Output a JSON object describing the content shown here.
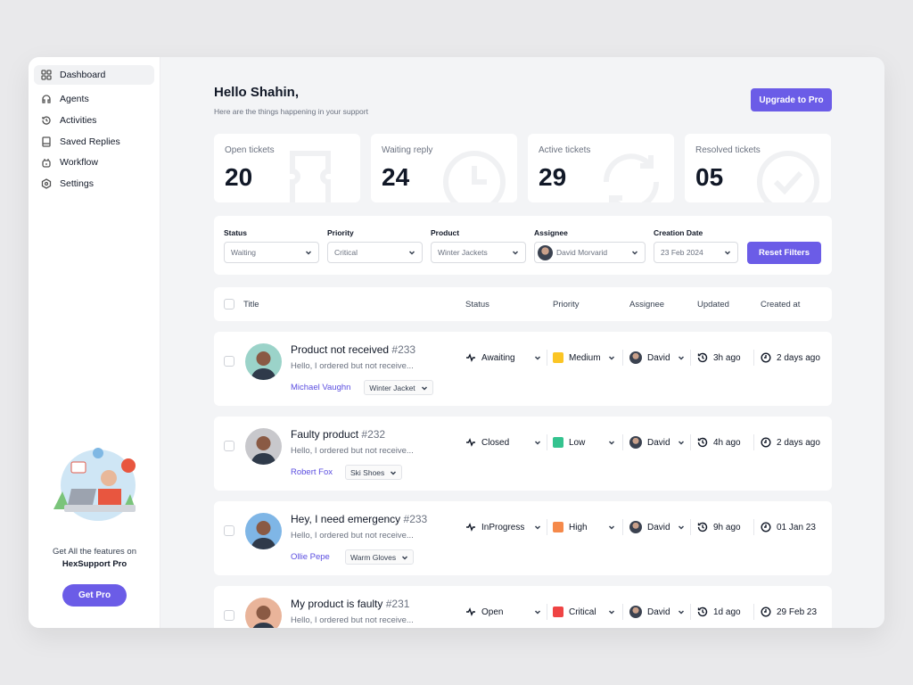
{
  "sidebar": {
    "items": [
      {
        "label": "Dashboard",
        "icon": "grid-icon",
        "active": true
      },
      {
        "label": "Agents",
        "icon": "headset-icon"
      },
      {
        "label": "Activities",
        "icon": "history-icon"
      },
      {
        "label": "Saved Replies",
        "icon": "book-icon"
      },
      {
        "label": "Workflow",
        "icon": "robot-icon"
      },
      {
        "label": "Settings",
        "icon": "settings-icon"
      }
    ],
    "promo_line1": "Get All the features on",
    "promo_line2": "HexSupport Pro",
    "get_pro": "Get Pro"
  },
  "header": {
    "title": "Hello Shahin,",
    "subtitle": "Here are the things happening in your support",
    "upgrade": "Upgrade to Pro"
  },
  "stats": [
    {
      "label": "Open tickets",
      "value": "20",
      "icon": "ticket-icon"
    },
    {
      "label": "Waiting reply",
      "value": "24",
      "icon": "clock-icon"
    },
    {
      "label": "Active tickets",
      "value": "29",
      "icon": "refresh-icon"
    },
    {
      "label": "Resolved tickets",
      "value": "05",
      "icon": "check-circle-icon"
    }
  ],
  "filters": {
    "status": {
      "label": "Status",
      "value": "Waiting"
    },
    "priority": {
      "label": "Priority",
      "value": "Critical"
    },
    "product": {
      "label": "Product",
      "value": "Winter Jackets"
    },
    "assignee": {
      "label": "Assignee",
      "value": "David Morvarid"
    },
    "date": {
      "label": "Creation Date",
      "value": "23 Feb 2024"
    },
    "reset": "Reset Filters"
  },
  "table": {
    "headers": {
      "title": "Title",
      "status": "Status",
      "priority": "Priority",
      "assignee": "Assignee",
      "updated": "Updated",
      "created": "Created at"
    },
    "rows": [
      {
        "title": "Product not received",
        "id": "#233",
        "preview": "Hello, I ordered but not receive...",
        "customer": "Michael Vaughn",
        "product": "Winter Jacket",
        "status": "Awaiting",
        "priority": "Medium",
        "priority_color": "#fbc524",
        "assignee": "David",
        "updated": "3h ago",
        "created": "2 days ago"
      },
      {
        "title": "Faulty product",
        "id": "#232",
        "preview": "Hello, I ordered but not receive...",
        "customer": "Robert Fox",
        "product": "Ski Shoes",
        "status": "Closed",
        "priority": "Low",
        "priority_color": "#34c38f",
        "assignee": "David",
        "updated": "4h ago",
        "created": "2 days ago"
      },
      {
        "title": "Hey, I need emergency",
        "id": "#233",
        "preview": "Hello, I ordered but not receive...",
        "customer": "Ollie Pepe",
        "product": "Warm Gloves",
        "status": "InProgress",
        "priority": "High",
        "priority_color": "#f5894a",
        "assignee": "David",
        "updated": "9h ago",
        "created": "01 Jan 23"
      },
      {
        "title": "My product is faulty",
        "id": "#231",
        "preview": "Hello, I ordered but not receive...",
        "customer": "",
        "product": "",
        "status": "Open",
        "priority": "Critical",
        "priority_color": "#ef4444",
        "assignee": "David",
        "updated": "1d ago",
        "created": "29 Feb 23"
      }
    ]
  }
}
